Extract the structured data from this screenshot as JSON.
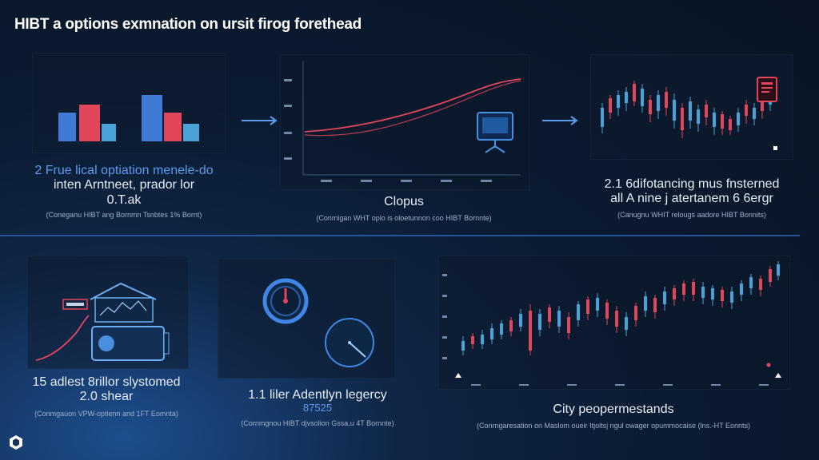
{
  "header": {
    "title": "HIBT a options exmnation on ursit firog forethead"
  },
  "panels": [
    {
      "caption_lines": [
        "2 Frue lical optiation menele-do",
        "inten Arntneet, prador lor",
        "0.T.ak"
      ],
      "source": "(Coneganu HIBT ang Bornmn Tsnbtes 1% Bornt)"
    },
    {
      "caption_lines": [
        "Clopus"
      ],
      "source": "(Conmigan WHT oplo is oloetunnon coo HIBT Bornnte)"
    },
    {
      "caption_lines": [
        "2.1 6difotancing mus fnsterned",
        "all A nine j atertanem 6 6ergr"
      ],
      "source": "(Canugnu WHIT relougs aadore HIBT Bonnits)"
    },
    {
      "caption_lines": [
        "15 adlest 8rillor slystomed",
        "2.0 shear"
      ],
      "source": "(Conmgauon VPW-optienn and 1FT Eomnta)"
    },
    {
      "caption_lines": [
        "1.1 liler Adentlyn legercy",
        "87525"
      ],
      "source": "(Cornmgnou HIBT djvsolion Gssa.u 4T Bornnte)"
    },
    {
      "caption_lines": [
        "City peopermestands"
      ],
      "source": "(Conrngaresation on Maslom oueir Itjoltsj ngul owager opummocaise (lns.-HT Eonnts)"
    }
  ],
  "icon_names": [
    "bar-chart-icon",
    "line-chart-icon",
    "monitor-icon",
    "candlestick-chart-icon",
    "document-icon",
    "house-icon",
    "wallet-card-icon",
    "gauge-icon",
    "logo-icon"
  ],
  "colors": {
    "accent_blue": "#5c9cf0",
    "bar_blue": "#3f7ad6",
    "bar_red": "#e2465a",
    "bar_cyan": "#4aa3d8",
    "divider": "#2a5fa8"
  }
}
